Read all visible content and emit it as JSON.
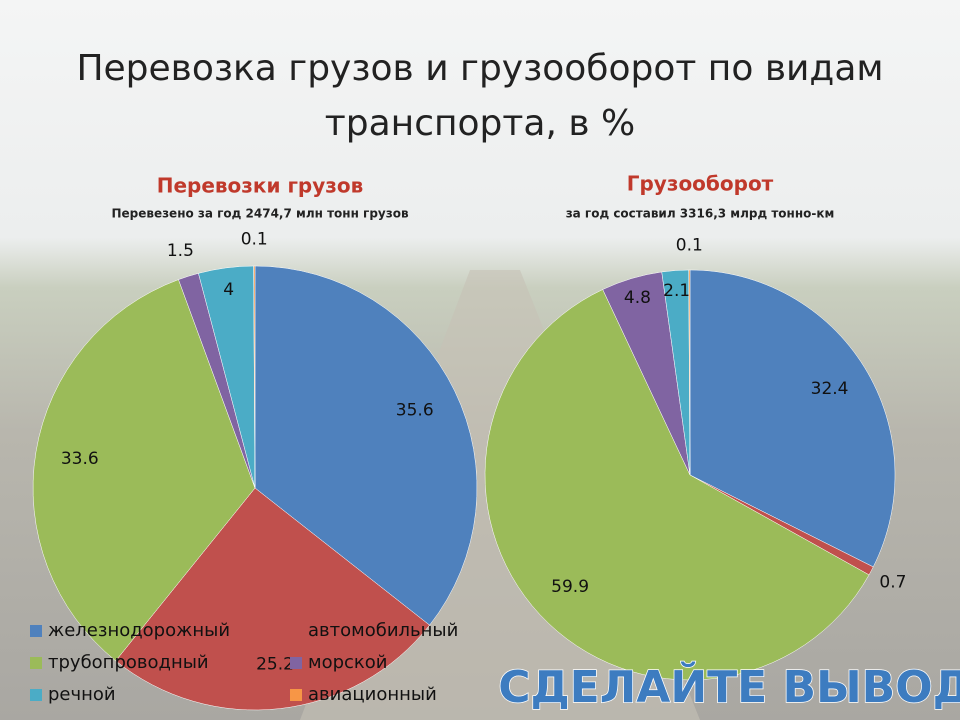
{
  "title": [
    "Перевозка грузов и грузооборот по видам",
    "транспорта, в %"
  ],
  "chart_data": [
    {
      "type": "pie",
      "title": "Перевозки грузов",
      "subtitle": "Перевезено за год 2474,7 млн тонн грузов",
      "categories": [
        "железнодорожный",
        "автомобильный",
        "трубопроводный",
        "морской",
        "речной",
        "авиационный"
      ],
      "values": [
        35.6,
        25.2,
        33.6,
        1.5,
        4,
        0.1
      ],
      "colors": [
        "#4f81bd",
        "#c0504d",
        "#9bbb59",
        "#8064a2",
        "#4bacc6",
        "#f79646"
      ]
    },
    {
      "type": "pie",
      "title": "Грузооборот",
      "subtitle": "за год составил 3316,3 млрд тонно-км",
      "values": [
        32.4,
        0.7,
        59.9,
        4.8,
        2.1,
        0.1
      ],
      "colors": [
        "#4f81bd",
        "#c0504d",
        "#9bbb59",
        "#8064a2",
        "#4bacc6",
        "#f79646"
      ]
    }
  ],
  "footer": "СДЕЛАЙТЕ ВЫВОД"
}
